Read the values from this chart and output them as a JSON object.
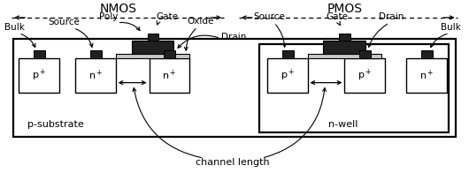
{
  "bg_color": "#ffffff",
  "lc": "#000000",
  "gray": "#c8c8c8",
  "dark": "#202020",
  "nmos_label": "NMOS",
  "pmos_label": "PMOS",
  "substrate_label": "p-substrate",
  "nwell_label": "n-well",
  "channel_label": "channel length"
}
